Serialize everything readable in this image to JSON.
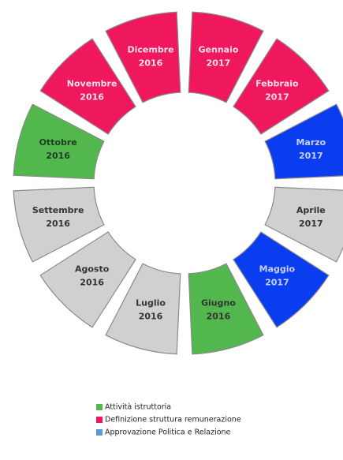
{
  "segments": [
    {
      "month": "Gennaio",
      "year": "2017",
      "color": "#f0185c",
      "text": "#fde0e8"
    },
    {
      "month": "Febbraio",
      "year": "2017",
      "color": "#f0185c",
      "text": "#fde0e8"
    },
    {
      "month": "Marzo",
      "year": "2017",
      "color": "#0a3cf0",
      "text": "#c9d3ff"
    },
    {
      "month": "Aprile",
      "year": "2017",
      "color": "#d0d0d0",
      "text": "#333333"
    },
    {
      "month": "Maggio",
      "year": "2017",
      "color": "#0a3cf0",
      "text": "#c9d3ff"
    },
    {
      "month": "Giugno",
      "year": "2016",
      "color": "#52b84e",
      "text": "#333333"
    },
    {
      "month": "Luglio",
      "year": "2016",
      "color": "#d0d0d0",
      "text": "#333333"
    },
    {
      "month": "Agosto",
      "year": "2016",
      "color": "#d0d0d0",
      "text": "#333333"
    },
    {
      "month": "Settembre",
      "year": "2016",
      "color": "#d0d0d0",
      "text": "#333333"
    },
    {
      "month": "Ottobre",
      "year": "2016",
      "color": "#52b84e",
      "text": "#1f3d1f"
    },
    {
      "month": "Novembre",
      "year": "2016",
      "color": "#f0185c",
      "text": "#fde0e8"
    },
    {
      "month": "Dicembre",
      "year": "2016",
      "color": "#f0185c",
      "text": "#fde0e8"
    }
  ],
  "legend": [
    {
      "name": "Attività istruttoria",
      "color": "#52b84e"
    },
    {
      "name": "Definizione struttura remunerazione",
      "color": "#f0185c"
    },
    {
      "name": "Approvazione Politica e Relazione",
      "color": "#5b9bd5"
    }
  ]
}
